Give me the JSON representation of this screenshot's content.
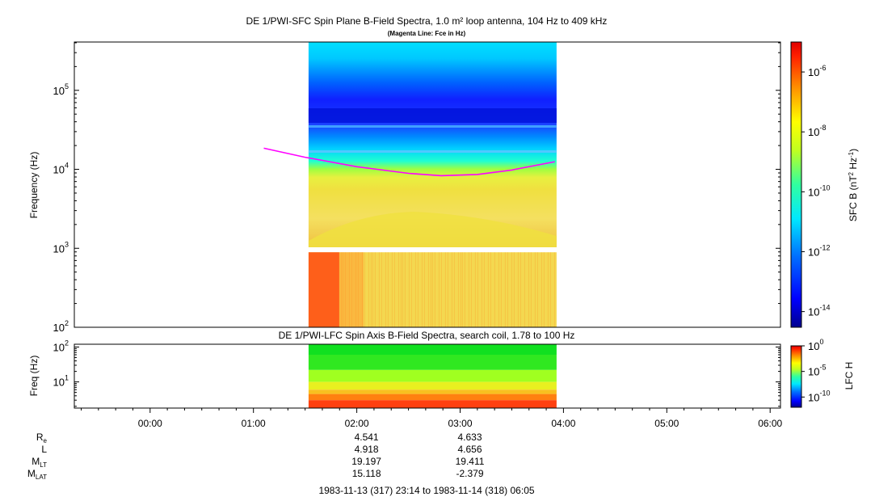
{
  "chart_data": [
    {
      "type": "heatmap",
      "title": "DE 1/PWI-SFC  Spin Plane B-Field Spectra, 1.0 m² loop antenna, 104 Hz to 409 kHz",
      "subtitle": "(Magenta Line: Fce in Hz)",
      "ylabel": "Frequency (Hz)",
      "yscale": "log",
      "ylim": [
        100,
        409000
      ],
      "yticks": [
        {
          "value": 100,
          "base": "10",
          "exp": "2"
        },
        {
          "value": 1000,
          "base": "10",
          "exp": "3"
        },
        {
          "value": 10000,
          "base": "10",
          "exp": "4"
        },
        {
          "value": 100000,
          "base": "10",
          "exp": "5"
        }
      ],
      "data_time_range": [
        "01:32",
        "03:56"
      ],
      "gap_freq_range_hz": [
        890,
        1030
      ],
      "colorbar": {
        "label_base": "SFC B (nT",
        "label_sup1": "2",
        "label_mid": " Hz",
        "label_sup2": "-1",
        "label_end": ")",
        "scale": "log",
        "range": [
          3e-15,
          1e-05
        ],
        "ticks": [
          {
            "value": 1e-06,
            "base": "10",
            "exp": "-6"
          },
          {
            "value": 1e-08,
            "base": "10",
            "exp": "-8"
          },
          {
            "value": 1e-10,
            "base": "10",
            "exp": "-10"
          },
          {
            "value": 1e-12,
            "base": "10",
            "exp": "-12"
          },
          {
            "value": 1e-14,
            "base": "10",
            "exp": "-14"
          }
        ]
      },
      "fce_line": {
        "color": "#ff00ff",
        "x": [
          "01:06",
          "01:30",
          "02:00",
          "02:30",
          "02:49",
          "03:10",
          "03:30",
          "03:55"
        ],
        "y_hz": [
          18500,
          14200,
          10800,
          8900,
          8300,
          8600,
          9800,
          12500
        ]
      }
    },
    {
      "type": "heatmap",
      "title": "DE 1/PWI-LFC  Spin Axis B-Field Spectra, search coil, 1.78 to 100 Hz",
      "ylabel": "Freq (Hz)",
      "yscale": "log",
      "ylim": [
        1.78,
        120
      ],
      "yticks": [
        {
          "value": 10,
          "base": "10",
          "exp": "1"
        },
        {
          "value": 100,
          "base": "10",
          "exp": "2"
        }
      ],
      "data_time_range": [
        "01:32",
        "03:56"
      ],
      "colorbar": {
        "label": "LFC H",
        "scale": "log",
        "range": [
          1e-12,
          1
        ],
        "ticks": [
          {
            "value": 1,
            "base": "10",
            "exp": "0"
          },
          {
            "value": 1e-05,
            "base": "10",
            "exp": "-5"
          },
          {
            "value": 1e-10,
            "base": "10",
            "exp": "-10"
          }
        ]
      }
    }
  ],
  "time_axis": {
    "start": "-00:44",
    "end": "06:06",
    "ticks": [
      "00:00",
      "01:00",
      "02:00",
      "03:00",
      "04:00",
      "05:00",
      "06:00"
    ]
  },
  "ephemeris": {
    "rows": [
      {
        "label": "R",
        "sub": "e",
        "values": [
          "4.541",
          "4.633"
        ]
      },
      {
        "label": "L",
        "sub": "",
        "values": [
          "4.918",
          "4.656"
        ]
      },
      {
        "label": "M",
        "sub": "LT",
        "values": [
          "19.197",
          "19.411"
        ]
      },
      {
        "label": "M",
        "sub": "LAT",
        "values": [
          "15.118",
          "-2.379"
        ]
      }
    ],
    "times": [
      "02:00",
      "03:00"
    ]
  },
  "time_range_text": "1983-11-13 (317) 23:14 to 1983-11-14 (318) 06:05",
  "colors": {
    "fce": "#ff00ff",
    "colormap": [
      "#00007f",
      "#0000ff",
      "#007fff",
      "#00ffff",
      "#7fff7f",
      "#ffff00",
      "#ff7f00",
      "#ff0000",
      "#7f0000"
    ]
  }
}
